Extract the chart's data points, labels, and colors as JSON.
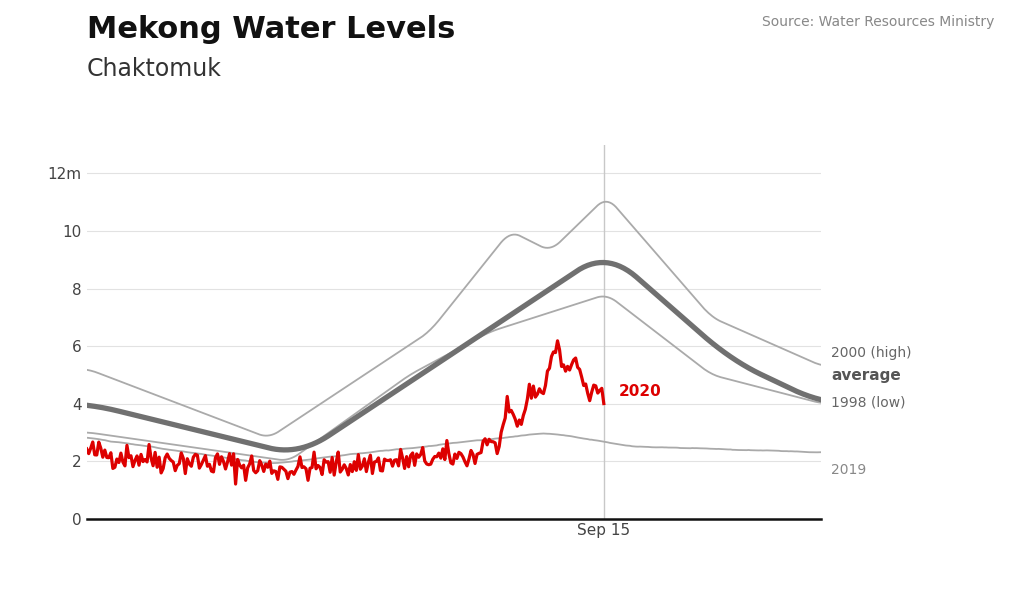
{
  "title": "Mekong Water Levels",
  "subtitle": "Chaktomuk",
  "source": "Source: Water Resources Ministry",
  "ylim": [
    0,
    13.0
  ],
  "yticks": [
    0,
    2,
    4,
    6,
    8,
    10,
    12
  ],
  "ytick_labels": [
    "0",
    "2",
    "4",
    "6",
    "8",
    "10",
    "12m"
  ],
  "vline_x": 257,
  "vline_label": "Sep 15",
  "background_color": "#ffffff",
  "title_fontsize": 22,
  "subtitle_fontsize": 17,
  "source_fontsize": 10,
  "label_2000": "2000 (high)",
  "label_avg": "average",
  "label_1998": "1998 (low)",
  "label_2019": "2019",
  "label_2020": "2020",
  "color_thin_gray": "#aaaaaa",
  "color_avg": "#707070",
  "color_2020": "#dd0000",
  "lw_thin": 1.3,
  "lw_avg": 3.8,
  "lw_2020": 2.3
}
